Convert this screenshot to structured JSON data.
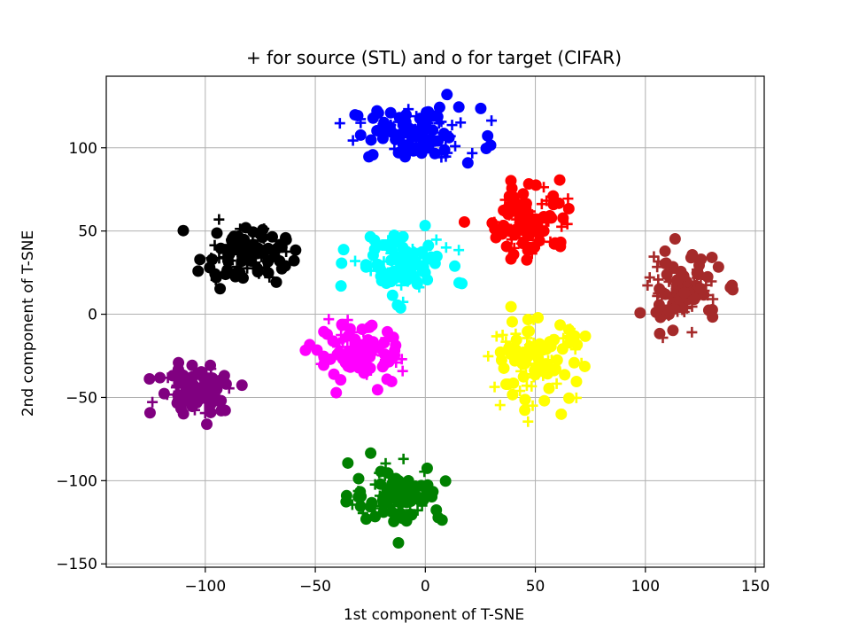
{
  "chart_data": {
    "type": "scatter",
    "title": "+ for source (STL) and o for target (CIFAR)",
    "xlabel": "1st component of T-SNE",
    "ylabel": "2nd component of T-SNE",
    "xlim": [
      -145,
      154
    ],
    "ylim": [
      -152,
      143
    ],
    "xticks": [
      -100,
      -50,
      0,
      50,
      100,
      150
    ],
    "xtick_labels": [
      "−100",
      "−50",
      "0",
      "50",
      "100",
      "150"
    ],
    "yticks": [
      -150,
      -100,
      -50,
      0,
      50,
      100
    ],
    "ytick_labels": [
      "−150",
      "−100",
      "−50",
      "0",
      "50",
      "100"
    ],
    "grid": true,
    "marker_legend": {
      "plus": "source (STL)",
      "circle": "target (CIFAR)"
    },
    "clusters": [
      {
        "color": "#0000ff",
        "center": [
          -5,
          108
        ],
        "spread": [
          24,
          13
        ],
        "source_marker": "plus",
        "target_marker": "circle"
      },
      {
        "color": "#ff0000",
        "center": [
          48,
          57
        ],
        "spread": [
          15,
          19
        ],
        "source_marker": "plus",
        "target_marker": "circle"
      },
      {
        "color": "#000000",
        "center": [
          -83,
          36
        ],
        "spread": [
          16,
          14
        ],
        "source_marker": "plus",
        "target_marker": "circle"
      },
      {
        "color": "#00ffff",
        "center": [
          -12,
          30
        ],
        "spread": [
          17,
          16
        ],
        "source_marker": "plus",
        "target_marker": "circle"
      },
      {
        "color": "#a52a2a",
        "center": [
          117,
          14
        ],
        "spread": [
          14,
          17
        ],
        "source_marker": "plus",
        "target_marker": "circle"
      },
      {
        "color": "#ff00ff",
        "center": [
          -30,
          -25
        ],
        "spread": [
          17,
          14
        ],
        "source_marker": "plus",
        "target_marker": "circle"
      },
      {
        "color": "#ffff00",
        "center": [
          50,
          -28
        ],
        "spread": [
          18,
          20
        ],
        "source_marker": "plus",
        "target_marker": "circle"
      },
      {
        "color": "#800080",
        "center": [
          -103,
          -45
        ],
        "spread": [
          15,
          13
        ],
        "source_marker": "plus",
        "target_marker": "circle"
      },
      {
        "color": "#008000",
        "center": [
          -13,
          -108
        ],
        "spread": [
          17,
          14
        ],
        "source_marker": "plus",
        "target_marker": "circle"
      }
    ]
  }
}
